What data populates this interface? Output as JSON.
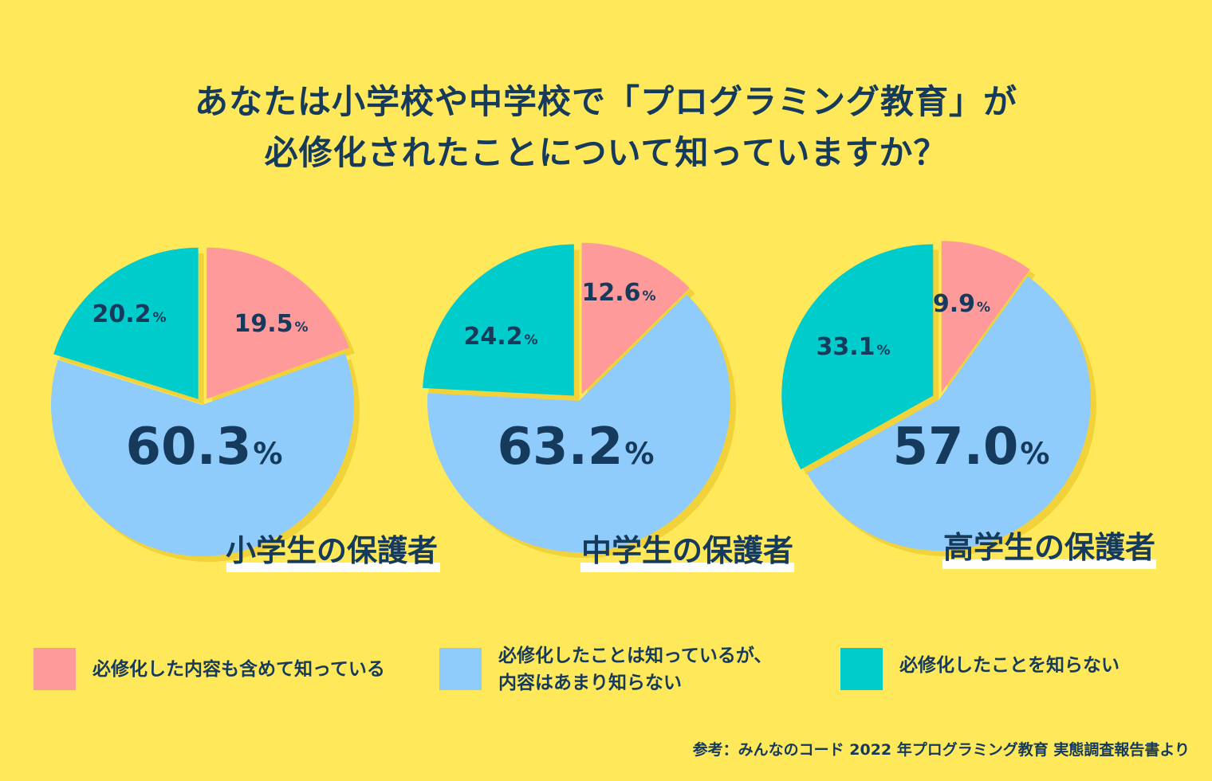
{
  "title_line1": "あなたは小学校や中学校で「プログラミング教育」が",
  "title_line2": "必修化されたことについて知っていますか？",
  "chart_data": [
    {
      "type": "pie",
      "label": "小学生の保護者",
      "slices": [
        {
          "category": "必修化した内容も含めて知っている",
          "value": 19.5,
          "text": "19.5"
        },
        {
          "category": "必修化したことは知っているが、内容はあまり知らない",
          "value": 60.3,
          "text": "60.3"
        },
        {
          "category": "必修化したことを知らない",
          "value": 20.2,
          "text": "20.2"
        }
      ]
    },
    {
      "type": "pie",
      "label": "中学生の保護者",
      "slices": [
        {
          "category": "必修化した内容も含めて知っている",
          "value": 12.6,
          "text": "12.6"
        },
        {
          "category": "必修化したことは知っているが、内容はあまり知らない",
          "value": 63.2,
          "text": "63.2"
        },
        {
          "category": "必修化したことを知らない",
          "value": 24.2,
          "text": "24.2"
        }
      ]
    },
    {
      "type": "pie",
      "label": "高学生の保護者",
      "slices": [
        {
          "category": "必修化した内容も含めて知っている",
          "value": 9.9,
          "text": "9.9"
        },
        {
          "category": "必修化したことは知っているが、内容はあまり知らない",
          "value": 57.0,
          "text": "57.0"
        },
        {
          "category": "必修化したことを知らない",
          "value": 33.1,
          "text": "33.1"
        }
      ]
    }
  ],
  "percent_sign": "%",
  "legend": [
    {
      "line1": "必修化した内容も含めて知っている",
      "line2": "",
      "color": "#ff9a9b"
    },
    {
      "line1": "必修化したことは知っているが、",
      "line2": "内容はあまり知らない",
      "color": "#8fcbfb"
    },
    {
      "line1": "必修化したことを知らない",
      "line2": "",
      "color": "#00cccb"
    }
  ],
  "colors": {
    "background": "#ffe95a",
    "text": "#153a5c",
    "shadow": "#f2d23a"
  },
  "source": "参考：みんなのコード 2022 年プログラミング教育 実態調査報告書より"
}
